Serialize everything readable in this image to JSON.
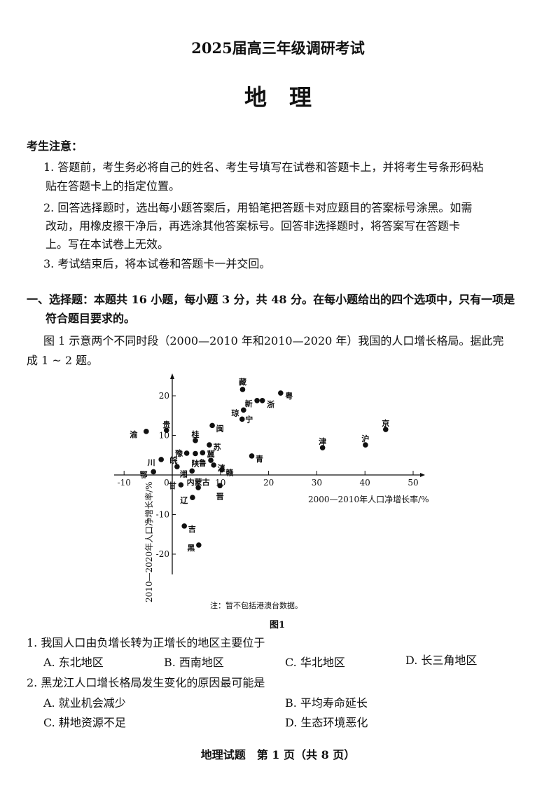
{
  "header": {
    "exam_title": "2025届高三年级调研考试",
    "subject": "地　理"
  },
  "notice": {
    "heading": "考生注意：",
    "items": [
      [
        "1. 答题前，考生务必将自己的姓名、考生号填写在试卷和答题卡上，并将考生号条形码粘",
        "贴在答题卡上的指定位置。"
      ],
      [
        "2. 回答选择题时，选出每小题答案后，用铅笔把答题卡对应题目的答案标号涂黑。如需",
        "改动，用橡皮擦干净后，再选涂其他答案标号。回答非选择题时，将答案写在答题卡",
        "上。写在本试卷上无效。"
      ],
      [
        "3. 考试结束后，将本试卷和答题卡一并交回。"
      ]
    ]
  },
  "section": {
    "heading_line1": "一、选择题：本题共 16 小题，每小题 3 分，共 48 分。在每小题给出的四个选项中，只有一项是",
    "heading_line2": "符合题目要求的。",
    "intro_line1": "图 1 示意两个不同时段（2000—2010 年和2010—2020 年）我国的人口增长格局。据此完",
    "intro_line2": "成 1 ~ 2 题。"
  },
  "chart_data": {
    "type": "scatter",
    "xlabel": "2000—2010年人口净增长率/%",
    "ylabel": "2010—2020年人口净增长率/%",
    "xlim": [
      -10,
      50
    ],
    "ylim": [
      -20,
      25
    ],
    "xticks": [
      -10,
      0,
      10,
      20,
      30,
      40,
      50
    ],
    "yticks": [
      -20,
      -10,
      10,
      20
    ],
    "grid": false,
    "note": "注：暂不包括港澳台数据。",
    "caption": "图1",
    "points": [
      {
        "label": "渝",
        "x": -5.4,
        "y": 11.0
      },
      {
        "label": "贵",
        "x": -1.2,
        "y": 11.3
      },
      {
        "label": "川",
        "x": -2.3,
        "y": 3.9
      },
      {
        "label": "鄂",
        "x": -3.9,
        "y": 0.8
      },
      {
        "label": "桂",
        "x": 4.8,
        "y": 8.7
      },
      {
        "label": "闽",
        "x": 8.3,
        "y": 12.5
      },
      {
        "label": "苏",
        "x": 7.7,
        "y": 7.6
      },
      {
        "label": "豫",
        "x": 3.0,
        "y": 5.5
      },
      {
        "label": "陕",
        "x": 4.8,
        "y": 5.4
      },
      {
        "label": "鲁",
        "x": 6.3,
        "y": 5.6
      },
      {
        "label": "冀",
        "x": 8.0,
        "y": 3.7
      },
      {
        "label": "滇",
        "x": 8.6,
        "y": 2.5
      },
      {
        "label": "皖",
        "x": 1.0,
        "y": 2.1
      },
      {
        "label": "湘",
        "x": 4.1,
        "y": 1.0
      },
      {
        "label": "赣",
        "x": 10.3,
        "y": 1.3
      },
      {
        "label": "甘",
        "x": 1.8,
        "y": -2.5
      },
      {
        "label": "内蒙古",
        "x": 5.4,
        "y": -3.2
      },
      {
        "label": "晋",
        "x": 9.9,
        "y": -2.7
      },
      {
        "label": "辽",
        "x": 4.2,
        "y": -5.7
      },
      {
        "label": "吉",
        "x": 2.5,
        "y": -12.9
      },
      {
        "label": "黑",
        "x": 5.5,
        "y": -17.7
      },
      {
        "label": "青",
        "x": 16.5,
        "y": 4.8
      },
      {
        "label": "藏",
        "x": 14.6,
        "y": 21.6
      },
      {
        "label": "新",
        "x": 17.6,
        "y": 18.8
      },
      {
        "label": "浙",
        "x": 18.7,
        "y": 18.8
      },
      {
        "label": "粤",
        "x": 22.5,
        "y": 20.7
      },
      {
        "label": "琼",
        "x": 14.8,
        "y": 16.4
      },
      {
        "label": "宁",
        "x": 14.5,
        "y": 14.1
      },
      {
        "label": "津",
        "x": 31.2,
        "y": 6.9
      },
      {
        "label": "沪",
        "x": 40.1,
        "y": 7.6
      },
      {
        "label": "京",
        "x": 44.3,
        "y": 11.5
      }
    ]
  },
  "questions": [
    {
      "stem": "1. 我国人口由负增长转为正增长的地区主要位于",
      "options": [
        "A. 东北地区",
        "B. 西南地区",
        "C. 华北地区",
        "D. 长三角地区"
      ]
    },
    {
      "stem": "2. 黑龙江人口增长格局发生变化的原因最可能是",
      "options": [
        "A. 就业机会减少",
        "B. 平均寿命延长",
        "C. 耕地资源不足",
        "D. 生态环境恶化"
      ]
    }
  ],
  "footer": "地理试题　第 1 页（共 8 页）"
}
